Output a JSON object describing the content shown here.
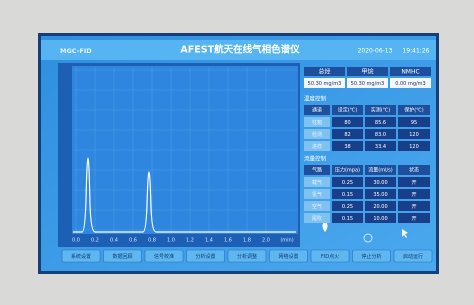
{
  "header": {
    "model": "MGC-FID",
    "title": "AFEST航天在线气相色谱仪",
    "date": "2020-06-13",
    "time": "19:41:26"
  },
  "chromatogram": {
    "xticks": [
      "0.0",
      "0.2",
      "0.4",
      "0.6",
      "0.8",
      "1.0",
      "1.2",
      "1.4",
      "1.6",
      "1.8",
      "2.0"
    ],
    "x_unit": "(min)"
  },
  "summary": {
    "labels": [
      "总烃",
      "甲烷",
      "NMHC"
    ],
    "values": [
      "50.30 mg/m3",
      "50.30 mg/m3",
      "0.00 mg/m3"
    ]
  },
  "temperature": {
    "title": "温度控制",
    "headers": [
      "通道",
      "设定(℃)",
      "实测(℃)",
      "保护(℃)"
    ],
    "rows": [
      [
        "柱箱",
        "80",
        "85.6",
        "95"
      ],
      [
        "检测",
        "82",
        "83.0",
        "120"
      ],
      [
        "进样",
        "38",
        "33.4",
        "120"
      ]
    ]
  },
  "flow": {
    "title": "流量控制",
    "headers": [
      "气路",
      "压力(mpa)",
      "流量(ml/s)",
      "状态"
    ],
    "rows": [
      [
        "载气",
        "0.25",
        "30.00",
        "开"
      ],
      [
        "氢气",
        "0.15",
        "35.00",
        "开"
      ],
      [
        "空气",
        "0.25",
        "20.00",
        "开"
      ],
      [
        "尾吹",
        "0.15",
        "10.00",
        "开"
      ]
    ]
  },
  "buttons": [
    "系统设置",
    "数据回顾",
    "信号校准",
    "分析设置",
    "分析调整",
    "网络设置",
    "FID点火",
    "停止分析",
    "启动运行"
  ]
}
